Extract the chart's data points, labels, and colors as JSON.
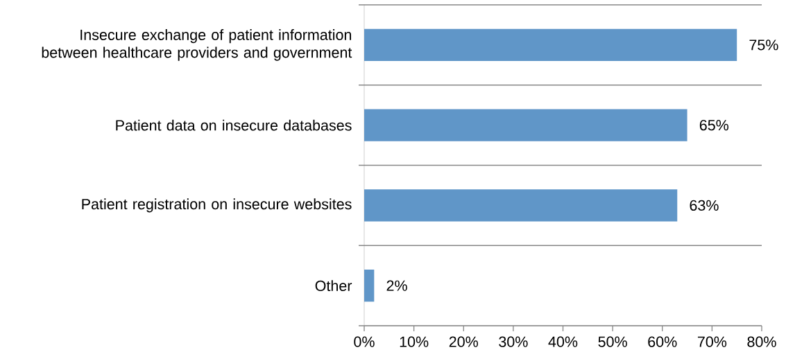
{
  "chart_data": {
    "type": "bar",
    "orientation": "horizontal",
    "categories": [
      "Insecure exchange of patient information between healthcare providers and government",
      "Patient data on insecure databases",
      "Patient registration on insecure websites",
      "Other"
    ],
    "values": [
      75,
      65,
      63,
      2
    ],
    "value_labels": [
      "75%",
      "65%",
      "63%",
      "2%"
    ],
    "color": "#6096c8",
    "xlim": [
      0,
      80
    ],
    "xticks": [
      {
        "value": 0,
        "label": "0%"
      },
      {
        "value": 10,
        "label": "10%"
      },
      {
        "value": 20,
        "label": "20%"
      },
      {
        "value": 30,
        "label": "30%"
      },
      {
        "value": 40,
        "label": "40%"
      },
      {
        "value": 50,
        "label": "50%"
      },
      {
        "value": 60,
        "label": "60%"
      },
      {
        "value": 70,
        "label": "70%"
      },
      {
        "value": 80,
        "label": "80%"
      }
    ],
    "grid": "y"
  }
}
